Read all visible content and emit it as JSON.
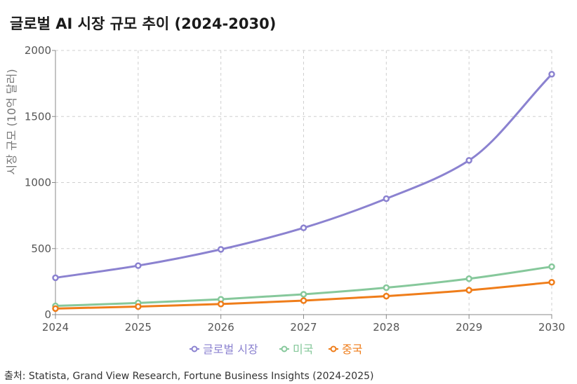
{
  "chart_data": {
    "type": "line",
    "title": "글로벌 AI 시장 규모 추이 (2024-2030)",
    "xlabel": "",
    "ylabel": "시장 규모 (10억 달러)",
    "x": [
      "2024",
      "2025",
      "2026",
      "2027",
      "2028",
      "2029",
      "2030"
    ],
    "ylim": [
      0,
      2000
    ],
    "yticks": [
      0,
      500,
      1000,
      1500,
      2000
    ],
    "grid": true,
    "legend": "bottom",
    "series": [
      {
        "name": "글로벌 시장",
        "color": "#8b82d0",
        "values": [
          279,
          371,
          494,
          657,
          878,
          1168,
          1820
        ]
      },
      {
        "name": "미국",
        "color": "#86c89b",
        "values": [
          66,
          88,
          116,
          154,
          204,
          272,
          363
        ]
      },
      {
        "name": "중국",
        "color": "#ef7d1a",
        "values": [
          46,
          61,
          80,
          106,
          140,
          185,
          245
        ]
      }
    ],
    "source": "출처: Statista, Grand View Research, Fortune Business Insights (2024-2025)"
  }
}
